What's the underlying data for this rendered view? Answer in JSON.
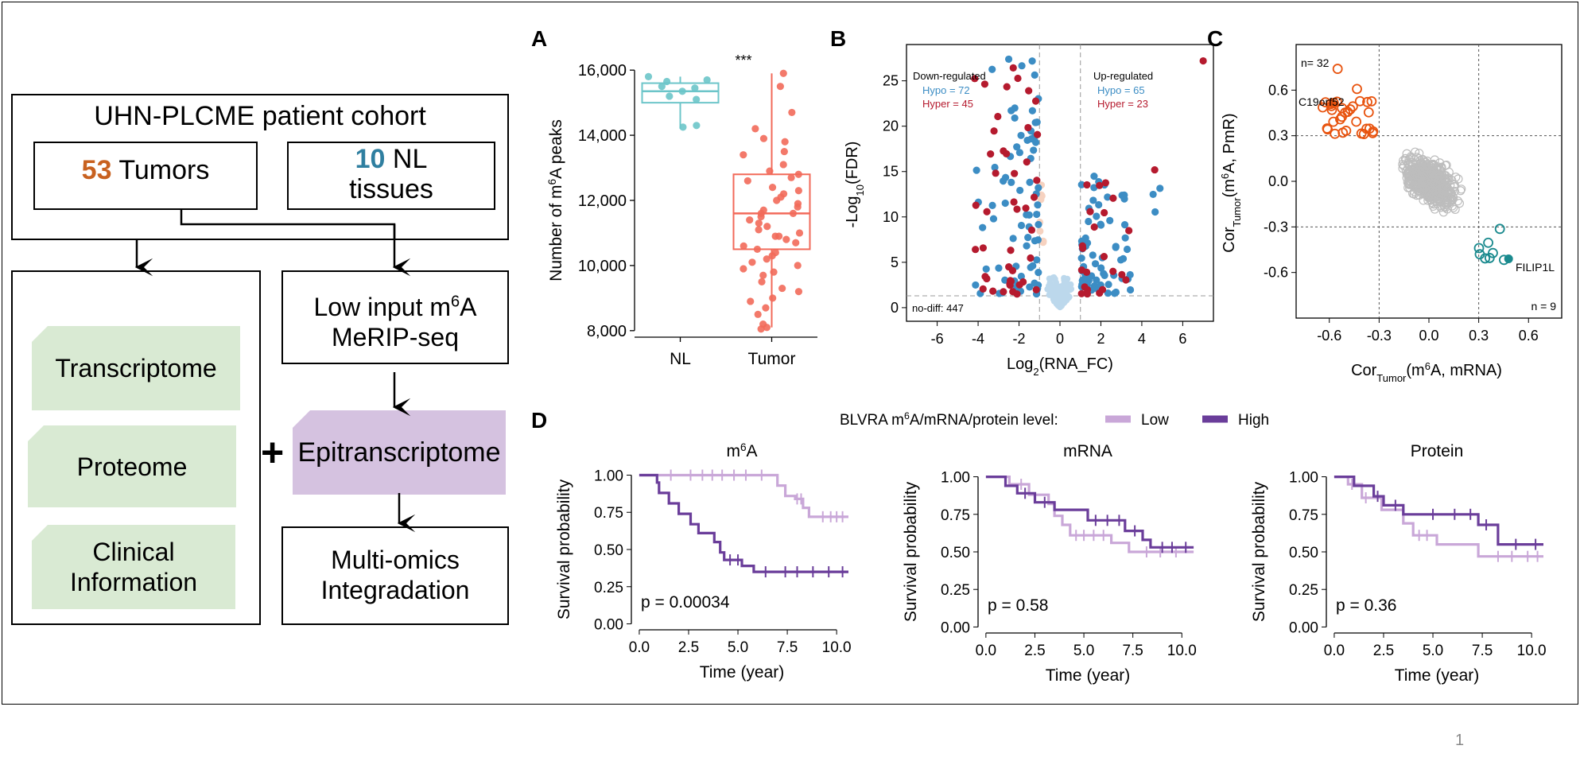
{
  "flow": {
    "cohort_title": "UHN-PLCME patient cohort",
    "tumors_count": "53",
    "tumors_label": "Tumors",
    "nl_count": "10",
    "nl_label_1": "NL",
    "nl_label_2": "tissues",
    "merip_line1_a": "Low input m",
    "merip_sup": "6",
    "merip_line1_b": "A",
    "merip_line2": "MeRIP-seq",
    "transcriptome": "Transcriptome",
    "proteome": "Proteome",
    "clinical_1": "Clinical",
    "clinical_2": "Information",
    "plus": "+",
    "epitranscriptome": "Epitranscriptome",
    "multiomics_1": "Multi-omics",
    "multiomics_2": "Integradation",
    "colors": {
      "tumor": "#c8611f",
      "nl": "#2f7fa0",
      "omics_bg": "#d9ead3",
      "epi_bg": "#d5c2e0"
    }
  },
  "page_number": "1",
  "chart_data": [
    {
      "panel": "A",
      "type": "box",
      "ylabel_a": "Number of  m",
      "ylabel_sup": "6",
      "ylabel_b": "A peaks",
      "categories": [
        "NL",
        "Tumor"
      ],
      "yticks": [
        "8,000",
        "10,000",
        "12,000",
        "14,000",
        "16,000"
      ],
      "ylim": [
        7800,
        16200
      ],
      "significance": "***",
      "boxes": [
        {
          "name": "NL",
          "min": 14200,
          "q1": 15000,
          "median": 15350,
          "q3": 15600,
          "max": 15800,
          "color": "#6cc5c9"
        },
        {
          "name": "Tumor",
          "min": 8100,
          "q1": 10500,
          "median": 11600,
          "q3": 12800,
          "max": 15900,
          "color": "#f26a5a"
        }
      ],
      "points": {
        "NL": [
          15800,
          15700,
          15650,
          15500,
          15450,
          15350,
          15200,
          15100,
          14300,
          14250
        ],
        "Tumor": [
          15900,
          15500,
          14700,
          14200,
          13900,
          13800,
          13500,
          13400,
          13100,
          12900,
          12800,
          12700,
          12600,
          12400,
          12300,
          12200,
          12100,
          12000,
          11900,
          11800,
          11700,
          11600,
          11600,
          11500,
          11400,
          11300,
          11200,
          11100,
          11000,
          10900,
          10800,
          10700,
          10600,
          10500,
          10400,
          10300,
          10200,
          10100,
          10000,
          9900,
          9700,
          9500,
          9300,
          9200,
          9000,
          8900,
          8700,
          8500,
          8200,
          8100,
          8050,
          9800,
          10900
        ]
      }
    },
    {
      "panel": "B",
      "type": "scatter",
      "xlabel_a": "Log",
      "xlabel_sub": "2",
      "xlabel_b": "(RNA_FC)",
      "ylabel_a": "-Log",
      "ylabel_sub": "10",
      "ylabel_b": "(FDR)",
      "xticks": [
        "-6",
        "-4",
        "-2",
        "0",
        "2",
        "4",
        "6"
      ],
      "yticks": [
        "0",
        "5",
        "10",
        "15",
        "20",
        "25"
      ],
      "xlim": [
        -7.5,
        7.5
      ],
      "ylim": [
        -1.5,
        29
      ],
      "down_label": "Down-regulated",
      "down_hypo": "Hypo  = 72",
      "down_hyper": "Hyper = 45",
      "up_label": "Up-regulated",
      "up_hypo": "Hypo  = 65",
      "up_hyper": "Hyper = 23",
      "nodiff_label": "no-diff: 447",
      "colors": {
        "hypo": "#3c8dc4",
        "hyper": "#b51a2e",
        "nodiff": "#bcd8ec",
        "faint_hyper": "#f6d2c0"
      }
    },
    {
      "panel": "C",
      "type": "scatter",
      "xlabel_a": "Cor",
      "xlabel_sub": "Tumor",
      "xlabel_b": "(m",
      "xlabel_sup": "6",
      "xlabel_c": "A, mRNA)",
      "ylabel_a": "Cor",
      "ylabel_sub": "Tumor",
      "ylabel_b": "(m",
      "ylabel_sup": "6",
      "ylabel_c": "A,  PmR)",
      "xticks": [
        "-0.6",
        "-0.3",
        "0.0",
        "0.3",
        "0.6"
      ],
      "yticks": [
        "-0.6",
        "-0.3",
        "0.0",
        "0.3",
        "0.6"
      ],
      "xlim": [
        -0.8,
        0.8
      ],
      "ylim": [
        -0.9,
        0.9
      ],
      "n_top": "n= 32",
      "n_bottom": "n = 9",
      "label_top": "C19orf52",
      "label_bottom": "FILIP1L",
      "colors": {
        "top": "#e8530e",
        "bottom": "#1a8a8e",
        "gray": "#bdbdbd"
      }
    },
    {
      "panel": "D",
      "type": "line",
      "legend_title_a": "BLVRA m",
      "legend_title_sup": "6",
      "legend_title_b": "A/mRNA/protein level:",
      "legend": [
        {
          "name": "Low",
          "color": "#c9a7d8"
        },
        {
          "name": "High",
          "color": "#6a3d9a"
        }
      ],
      "ylabel": "Survival probability",
      "xlabel": "Time (year)",
      "xticks": [
        "0.0",
        "2.5",
        "5.0",
        "7.5",
        "10.0"
      ],
      "yticks": [
        "0.00",
        "0.25",
        "0.50",
        "0.75",
        "1.00"
      ],
      "xlim": [
        -0.4,
        10.8
      ],
      "ylim": [
        -0.04,
        1.04
      ],
      "plots": [
        {
          "title_a": "m",
          "title_sup": "6",
          "title_b": "A",
          "pvalue": "p = 0.00034",
          "low": [
            [
              0,
              1.0
            ],
            [
              7.0,
              1.0
            ],
            [
              7.0,
              0.93
            ],
            [
              7.4,
              0.93
            ],
            [
              7.4,
              0.86
            ],
            [
              7.9,
              0.86
            ],
            [
              7.9,
              0.84
            ],
            [
              8.3,
              0.84
            ],
            [
              8.3,
              0.78
            ],
            [
              8.6,
              0.78
            ],
            [
              8.6,
              0.72
            ],
            [
              10.6,
              0.72
            ]
          ],
          "low_censors": [
            [
              1.6,
              1.0
            ],
            [
              2.6,
              1.0
            ],
            [
              3.2,
              1.0
            ],
            [
              3.7,
              1.0
            ],
            [
              4.2,
              1.0
            ],
            [
              4.8,
              1.0
            ],
            [
              5.4,
              1.0
            ],
            [
              6.2,
              1.0
            ],
            [
              8.0,
              0.84
            ],
            [
              8.2,
              0.84
            ],
            [
              9.3,
              0.72
            ],
            [
              9.7,
              0.72
            ],
            [
              10.0,
              0.72
            ],
            [
              10.3,
              0.72
            ]
          ],
          "high": [
            [
              0,
              1.0
            ],
            [
              0.9,
              1.0
            ],
            [
              0.9,
              0.95
            ],
            [
              1.0,
              0.95
            ],
            [
              1.0,
              0.88
            ],
            [
              1.5,
              0.88
            ],
            [
              1.5,
              0.81
            ],
            [
              2.0,
              0.81
            ],
            [
              2.0,
              0.74
            ],
            [
              2.6,
              0.74
            ],
            [
              2.6,
              0.67
            ],
            [
              3.0,
              0.67
            ],
            [
              3.0,
              0.61
            ],
            [
              3.8,
              0.61
            ],
            [
              3.8,
              0.55
            ],
            [
              4.1,
              0.55
            ],
            [
              4.1,
              0.48
            ],
            [
              4.3,
              0.48
            ],
            [
              4.3,
              0.43
            ],
            [
              5.2,
              0.43
            ],
            [
              5.2,
              0.39
            ],
            [
              5.8,
              0.39
            ],
            [
              5.8,
              0.35
            ],
            [
              10.6,
              0.35
            ]
          ],
          "high_censors": [
            [
              4.6,
              0.43
            ],
            [
              5.0,
              0.43
            ],
            [
              6.4,
              0.35
            ],
            [
              7.4,
              0.35
            ],
            [
              8.0,
              0.35
            ],
            [
              8.8,
              0.35
            ],
            [
              9.6,
              0.35
            ],
            [
              10.3,
              0.35
            ]
          ]
        },
        {
          "title_a": "mRNA",
          "title_sup": "",
          "title_b": "",
          "pvalue": "p = 0.58",
          "low": [
            [
              0,
              1.0
            ],
            [
              1.2,
              1.0
            ],
            [
              1.2,
              0.95
            ],
            [
              2.2,
              0.95
            ],
            [
              2.2,
              0.88
            ],
            [
              3.2,
              0.88
            ],
            [
              3.2,
              0.82
            ],
            [
              3.5,
              0.82
            ],
            [
              3.5,
              0.74
            ],
            [
              3.9,
              0.74
            ],
            [
              3.9,
              0.68
            ],
            [
              4.3,
              0.68
            ],
            [
              4.3,
              0.61
            ],
            [
              6.4,
              0.61
            ],
            [
              6.4,
              0.56
            ],
            [
              7.3,
              0.56
            ],
            [
              7.3,
              0.5
            ],
            [
              10.6,
              0.5
            ]
          ],
          "low_censors": [
            [
              1.8,
              0.95
            ],
            [
              4.6,
              0.61
            ],
            [
              5.0,
              0.61
            ],
            [
              5.5,
              0.61
            ],
            [
              6.0,
              0.61
            ],
            [
              8.2,
              0.5
            ],
            [
              8.9,
              0.5
            ],
            [
              9.7,
              0.5
            ]
          ],
          "high": [
            [
              0,
              1.0
            ],
            [
              1.0,
              1.0
            ],
            [
              1.0,
              0.94
            ],
            [
              1.6,
              0.94
            ],
            [
              1.6,
              0.89
            ],
            [
              2.5,
              0.89
            ],
            [
              2.5,
              0.83
            ],
            [
              3.5,
              0.83
            ],
            [
              3.5,
              0.78
            ],
            [
              5.2,
              0.78
            ],
            [
              5.2,
              0.71
            ],
            [
              7.1,
              0.71
            ],
            [
              7.1,
              0.64
            ],
            [
              8.0,
              0.64
            ],
            [
              8.0,
              0.58
            ],
            [
              8.4,
              0.58
            ],
            [
              8.4,
              0.53
            ],
            [
              10.6,
              0.53
            ]
          ],
          "high_censors": [
            [
              2.0,
              0.89
            ],
            [
              3.0,
              0.83
            ],
            [
              5.6,
              0.71
            ],
            [
              6.2,
              0.71
            ],
            [
              6.8,
              0.71
            ],
            [
              7.6,
              0.64
            ],
            [
              9.0,
              0.53
            ],
            [
              9.5,
              0.53
            ],
            [
              10.2,
              0.53
            ]
          ]
        },
        {
          "title_a": "Protein",
          "title_sup": "",
          "title_b": "",
          "pvalue": "p = 0.36",
          "low": [
            [
              0,
              1.0
            ],
            [
              0.7,
              1.0
            ],
            [
              0.7,
              0.95
            ],
            [
              1.4,
              0.95
            ],
            [
              1.4,
              0.86
            ],
            [
              2.4,
              0.86
            ],
            [
              2.4,
              0.78
            ],
            [
              3.5,
              0.78
            ],
            [
              3.5,
              0.69
            ],
            [
              4.0,
              0.69
            ],
            [
              4.0,
              0.61
            ],
            [
              5.2,
              0.61
            ],
            [
              5.2,
              0.55
            ],
            [
              7.3,
              0.55
            ],
            [
              7.3,
              0.47
            ],
            [
              10.6,
              0.47
            ]
          ],
          "low_censors": [
            [
              0.9,
              0.95
            ],
            [
              1.6,
              0.86
            ],
            [
              4.3,
              0.61
            ],
            [
              4.7,
              0.61
            ],
            [
              8.3,
              0.47
            ],
            [
              9.0,
              0.47
            ],
            [
              9.8,
              0.47
            ],
            [
              10.3,
              0.47
            ]
          ],
          "high": [
            [
              0,
              1.0
            ],
            [
              1.0,
              1.0
            ],
            [
              1.0,
              0.94
            ],
            [
              2.0,
              0.94
            ],
            [
              2.0,
              0.87
            ],
            [
              2.5,
              0.87
            ],
            [
              2.5,
              0.81
            ],
            [
              3.5,
              0.81
            ],
            [
              3.5,
              0.75
            ],
            [
              7.3,
              0.75
            ],
            [
              7.3,
              0.68
            ],
            [
              8.3,
              0.68
            ],
            [
              8.3,
              0.55
            ],
            [
              10.6,
              0.55
            ]
          ],
          "high_censors": [
            [
              2.2,
              0.87
            ],
            [
              3.1,
              0.81
            ],
            [
              5.0,
              0.75
            ],
            [
              6.1,
              0.75
            ],
            [
              6.9,
              0.75
            ],
            [
              7.7,
              0.68
            ],
            [
              9.2,
              0.55
            ],
            [
              10.2,
              0.55
            ]
          ]
        }
      ]
    }
  ]
}
